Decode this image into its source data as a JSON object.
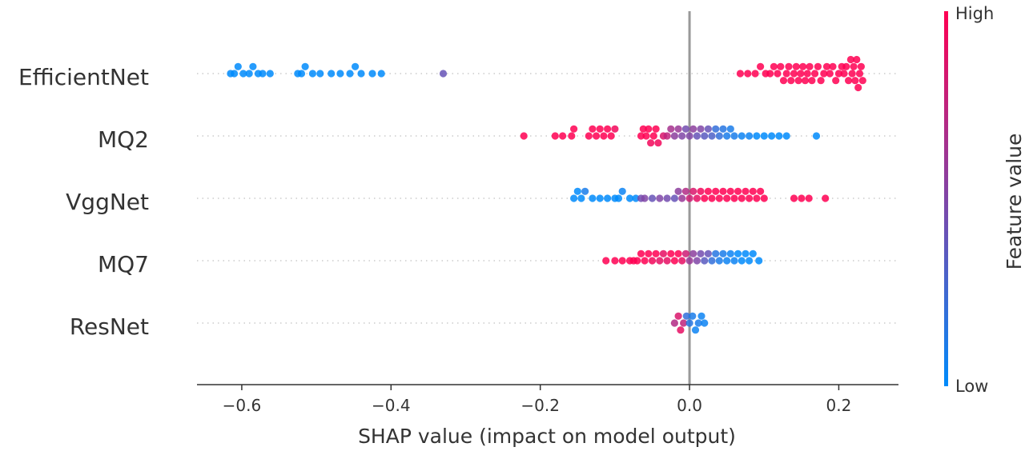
{
  "chart_data": {
    "type": "scatter",
    "subtype": "shap-beeswarm",
    "title": "",
    "xlabel": "SHAP value (impact on model output)",
    "xlim": [
      -0.66,
      0.28
    ],
    "xticks": [
      -0.6,
      -0.4,
      -0.2,
      0.0,
      0.2
    ],
    "xtick_labels": [
      "−0.6",
      "−0.4",
      "−0.2",
      "0.0",
      "0.2"
    ],
    "zero_line": 0.0,
    "features": [
      "EfficientNet",
      "MQ2",
      "VggNet",
      "MQ7",
      "ResNet"
    ],
    "colorbar": {
      "title": "Feature value",
      "high_label": "High",
      "low_label": "Low",
      "high_color": "#ff0052",
      "low_color": "#008bfb"
    },
    "series": [
      {
        "name": "EfficientNet",
        "points": [
          [
            -0.615,
            0.0
          ],
          [
            -0.61,
            0.0
          ],
          [
            -0.605,
            0.0
          ],
          [
            -0.598,
            0.0
          ],
          [
            -0.59,
            0.0
          ],
          [
            -0.585,
            0.0
          ],
          [
            -0.578,
            0.0
          ],
          [
            -0.572,
            0.0
          ],
          [
            -0.562,
            0.0
          ],
          [
            -0.525,
            0.0
          ],
          [
            -0.52,
            0.0
          ],
          [
            -0.515,
            0.0
          ],
          [
            -0.505,
            0.0
          ],
          [
            -0.495,
            0.0
          ],
          [
            -0.48,
            0.0
          ],
          [
            -0.468,
            0.0
          ],
          [
            -0.455,
            0.0
          ],
          [
            -0.448,
            0.0
          ],
          [
            -0.44,
            0.0
          ],
          [
            -0.425,
            0.0
          ],
          [
            -0.413,
            0.0
          ],
          [
            -0.33,
            0.4
          ],
          [
            0.068,
            1.0
          ],
          [
            0.078,
            1.0
          ],
          [
            0.088,
            1.0
          ],
          [
            0.095,
            1.0
          ],
          [
            0.102,
            1.0
          ],
          [
            0.108,
            1.0
          ],
          [
            0.113,
            1.0
          ],
          [
            0.118,
            1.0
          ],
          [
            0.122,
            1.0
          ],
          [
            0.126,
            1.0
          ],
          [
            0.13,
            1.0
          ],
          [
            0.133,
            1.0
          ],
          [
            0.136,
            1.0
          ],
          [
            0.14,
            1.0
          ],
          [
            0.143,
            1.0
          ],
          [
            0.146,
            1.0
          ],
          [
            0.149,
            1.0
          ],
          [
            0.152,
            1.0
          ],
          [
            0.155,
            1.0
          ],
          [
            0.158,
            1.0
          ],
          [
            0.161,
            1.0
          ],
          [
            0.164,
            1.0
          ],
          [
            0.168,
            1.0
          ],
          [
            0.172,
            1.0
          ],
          [
            0.176,
            1.0
          ],
          [
            0.18,
            1.0
          ],
          [
            0.184,
            1.0
          ],
          [
            0.188,
            1.0
          ],
          [
            0.192,
            1.0
          ],
          [
            0.196,
            1.0
          ],
          [
            0.2,
            1.0
          ],
          [
            0.204,
            1.0
          ],
          [
            0.207,
            1.0
          ],
          [
            0.21,
            1.0
          ],
          [
            0.213,
            1.0
          ],
          [
            0.216,
            1.0
          ],
          [
            0.218,
            1.0
          ],
          [
            0.22,
            1.0
          ],
          [
            0.222,
            1.0
          ],
          [
            0.224,
            1.0
          ],
          [
            0.226,
            1.0
          ],
          [
            0.228,
            1.0
          ],
          [
            0.23,
            1.0
          ],
          [
            0.232,
            1.0
          ]
        ]
      },
      {
        "name": "MQ2",
        "points": [
          [
            -0.222,
            1.0
          ],
          [
            -0.18,
            1.0
          ],
          [
            -0.17,
            1.0
          ],
          [
            -0.158,
            1.0
          ],
          [
            -0.155,
            1.0
          ],
          [
            -0.135,
            1.0
          ],
          [
            -0.13,
            1.0
          ],
          [
            -0.125,
            1.0
          ],
          [
            -0.12,
            1.0
          ],
          [
            -0.115,
            1.0
          ],
          [
            -0.11,
            1.0
          ],
          [
            -0.105,
            1.0
          ],
          [
            -0.1,
            0.95
          ],
          [
            -0.065,
            1.0
          ],
          [
            -0.062,
            1.0
          ],
          [
            -0.058,
            1.0
          ],
          [
            -0.055,
            1.0
          ],
          [
            -0.052,
            0.95
          ],
          [
            -0.048,
            1.0
          ],
          [
            -0.045,
            1.0
          ],
          [
            -0.042,
            0.95
          ],
          [
            -0.035,
            0.85
          ],
          [
            -0.03,
            0.75
          ],
          [
            -0.025,
            0.65
          ],
          [
            -0.02,
            0.55
          ],
          [
            -0.015,
            0.6
          ],
          [
            -0.01,
            0.5
          ],
          [
            -0.005,
            0.45
          ],
          [
            0.0,
            0.5
          ],
          [
            0.005,
            0.55
          ],
          [
            0.01,
            0.4
          ],
          [
            0.015,
            0.5
          ],
          [
            0.02,
            0.35
          ],
          [
            0.025,
            0.4
          ],
          [
            0.03,
            0.3
          ],
          [
            0.035,
            0.2
          ],
          [
            0.04,
            0.2
          ],
          [
            0.045,
            0.15
          ],
          [
            0.05,
            0.1
          ],
          [
            0.055,
            0.1
          ],
          [
            0.06,
            0.1
          ],
          [
            0.07,
            0.05
          ],
          [
            0.08,
            0.05
          ],
          [
            0.09,
            0.0
          ],
          [
            0.1,
            0.0
          ],
          [
            0.11,
            0.0
          ],
          [
            0.12,
            0.0
          ],
          [
            0.13,
            0.0
          ],
          [
            0.17,
            0.0
          ]
        ]
      },
      {
        "name": "VggNet",
        "points": [
          [
            -0.155,
            0.0
          ],
          [
            -0.15,
            0.0
          ],
          [
            -0.145,
            0.0
          ],
          [
            -0.14,
            0.1
          ],
          [
            -0.13,
            0.0
          ],
          [
            -0.12,
            0.0
          ],
          [
            -0.11,
            0.0
          ],
          [
            -0.1,
            0.0
          ],
          [
            -0.095,
            0.0
          ],
          [
            -0.09,
            0.05
          ],
          [
            -0.08,
            0.0
          ],
          [
            -0.072,
            0.0
          ],
          [
            -0.065,
            0.45
          ],
          [
            -0.06,
            0.5
          ],
          [
            -0.05,
            0.4
          ],
          [
            -0.04,
            0.5
          ],
          [
            -0.03,
            0.45
          ],
          [
            -0.02,
            0.4
          ],
          [
            -0.015,
            0.55
          ],
          [
            -0.01,
            0.6
          ],
          [
            -0.005,
            0.7
          ],
          [
            0.0,
            0.8
          ],
          [
            0.005,
            0.85
          ],
          [
            0.01,
            0.9
          ],
          [
            0.015,
            0.95
          ],
          [
            0.02,
            1.0
          ],
          [
            0.025,
            1.0
          ],
          [
            0.03,
            1.0
          ],
          [
            0.035,
            1.0
          ],
          [
            0.04,
            1.0
          ],
          [
            0.045,
            1.0
          ],
          [
            0.05,
            1.0
          ],
          [
            0.055,
            1.0
          ],
          [
            0.06,
            1.0
          ],
          [
            0.065,
            1.0
          ],
          [
            0.07,
            1.0
          ],
          [
            0.075,
            1.0
          ],
          [
            0.08,
            1.0
          ],
          [
            0.085,
            1.0
          ],
          [
            0.09,
            1.0
          ],
          [
            0.095,
            1.0
          ],
          [
            0.1,
            1.0
          ],
          [
            0.14,
            1.0
          ],
          [
            0.15,
            1.0
          ],
          [
            0.16,
            1.0
          ],
          [
            0.182,
            1.0
          ]
        ]
      },
      {
        "name": "MQ7",
        "points": [
          [
            -0.112,
            1.0
          ],
          [
            -0.1,
            1.0
          ],
          [
            -0.09,
            1.0
          ],
          [
            -0.08,
            1.0
          ],
          [
            -0.075,
            1.0
          ],
          [
            -0.07,
            1.0
          ],
          [
            -0.065,
            1.0
          ],
          [
            -0.06,
            1.0
          ],
          [
            -0.055,
            1.0
          ],
          [
            -0.05,
            0.95
          ],
          [
            -0.045,
            1.0
          ],
          [
            -0.04,
            0.9
          ],
          [
            -0.035,
            0.9
          ],
          [
            -0.03,
            0.9
          ],
          [
            -0.025,
            1.0
          ],
          [
            -0.02,
            1.0
          ],
          [
            -0.015,
            1.0
          ],
          [
            -0.01,
            0.9
          ],
          [
            -0.005,
            0.8
          ],
          [
            0.0,
            0.6
          ],
          [
            0.005,
            0.55
          ],
          [
            0.01,
            0.5
          ],
          [
            0.015,
            0.45
          ],
          [
            0.02,
            0.35
          ],
          [
            0.025,
            0.4
          ],
          [
            0.03,
            0.2
          ],
          [
            0.035,
            0.15
          ],
          [
            0.04,
            0.1
          ],
          [
            0.045,
            0.1
          ],
          [
            0.05,
            0.05
          ],
          [
            0.055,
            0.05
          ],
          [
            0.06,
            0.05
          ],
          [
            0.065,
            0.0
          ],
          [
            0.07,
            0.0
          ],
          [
            0.075,
            0.0
          ],
          [
            0.08,
            0.0
          ],
          [
            0.085,
            0.0
          ],
          [
            0.093,
            0.0
          ]
        ]
      },
      {
        "name": "ResNet",
        "points": [
          [
            -0.02,
            0.7
          ],
          [
            -0.015,
            0.85
          ],
          [
            -0.012,
            0.9
          ],
          [
            -0.008,
            0.75
          ],
          [
            -0.004,
            0.2
          ],
          [
            0.0,
            0.15
          ],
          [
            0.004,
            0.1
          ],
          [
            0.008,
            0.05
          ],
          [
            0.012,
            0.1
          ],
          [
            0.016,
            0.05
          ],
          [
            0.02,
            0.05
          ]
        ]
      }
    ]
  }
}
